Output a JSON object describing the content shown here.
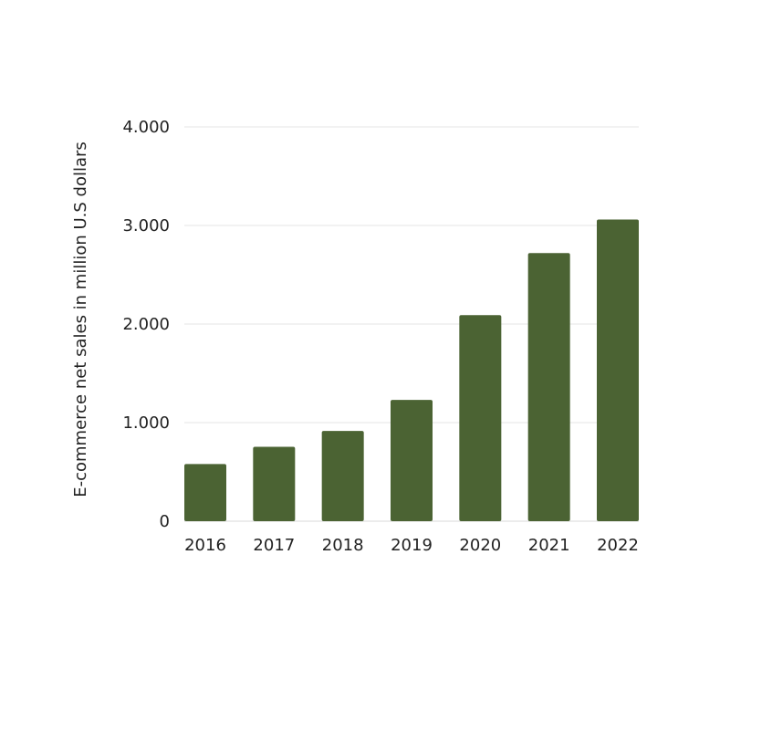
{
  "chart_data": {
    "type": "bar",
    "title": "",
    "xlabel": "",
    "ylabel": "E-commerce net sales in million U.S dollars",
    "categories": [
      "2016",
      "2017",
      "2018",
      "2019",
      "2020",
      "2021",
      "2022"
    ],
    "values": [
      580,
      755,
      915,
      1230,
      2090,
      2720,
      3060
    ],
    "ylim": [
      0,
      4000
    ],
    "yticks": [
      0,
      1000,
      2000,
      3000,
      4000
    ],
    "ytick_labels": [
      "0",
      "1.000",
      "2.000",
      "3.000",
      "4.000"
    ],
    "grid": true,
    "legend": "none",
    "bar_color": "#4b6333",
    "grid_color": "#e6e6e6"
  }
}
